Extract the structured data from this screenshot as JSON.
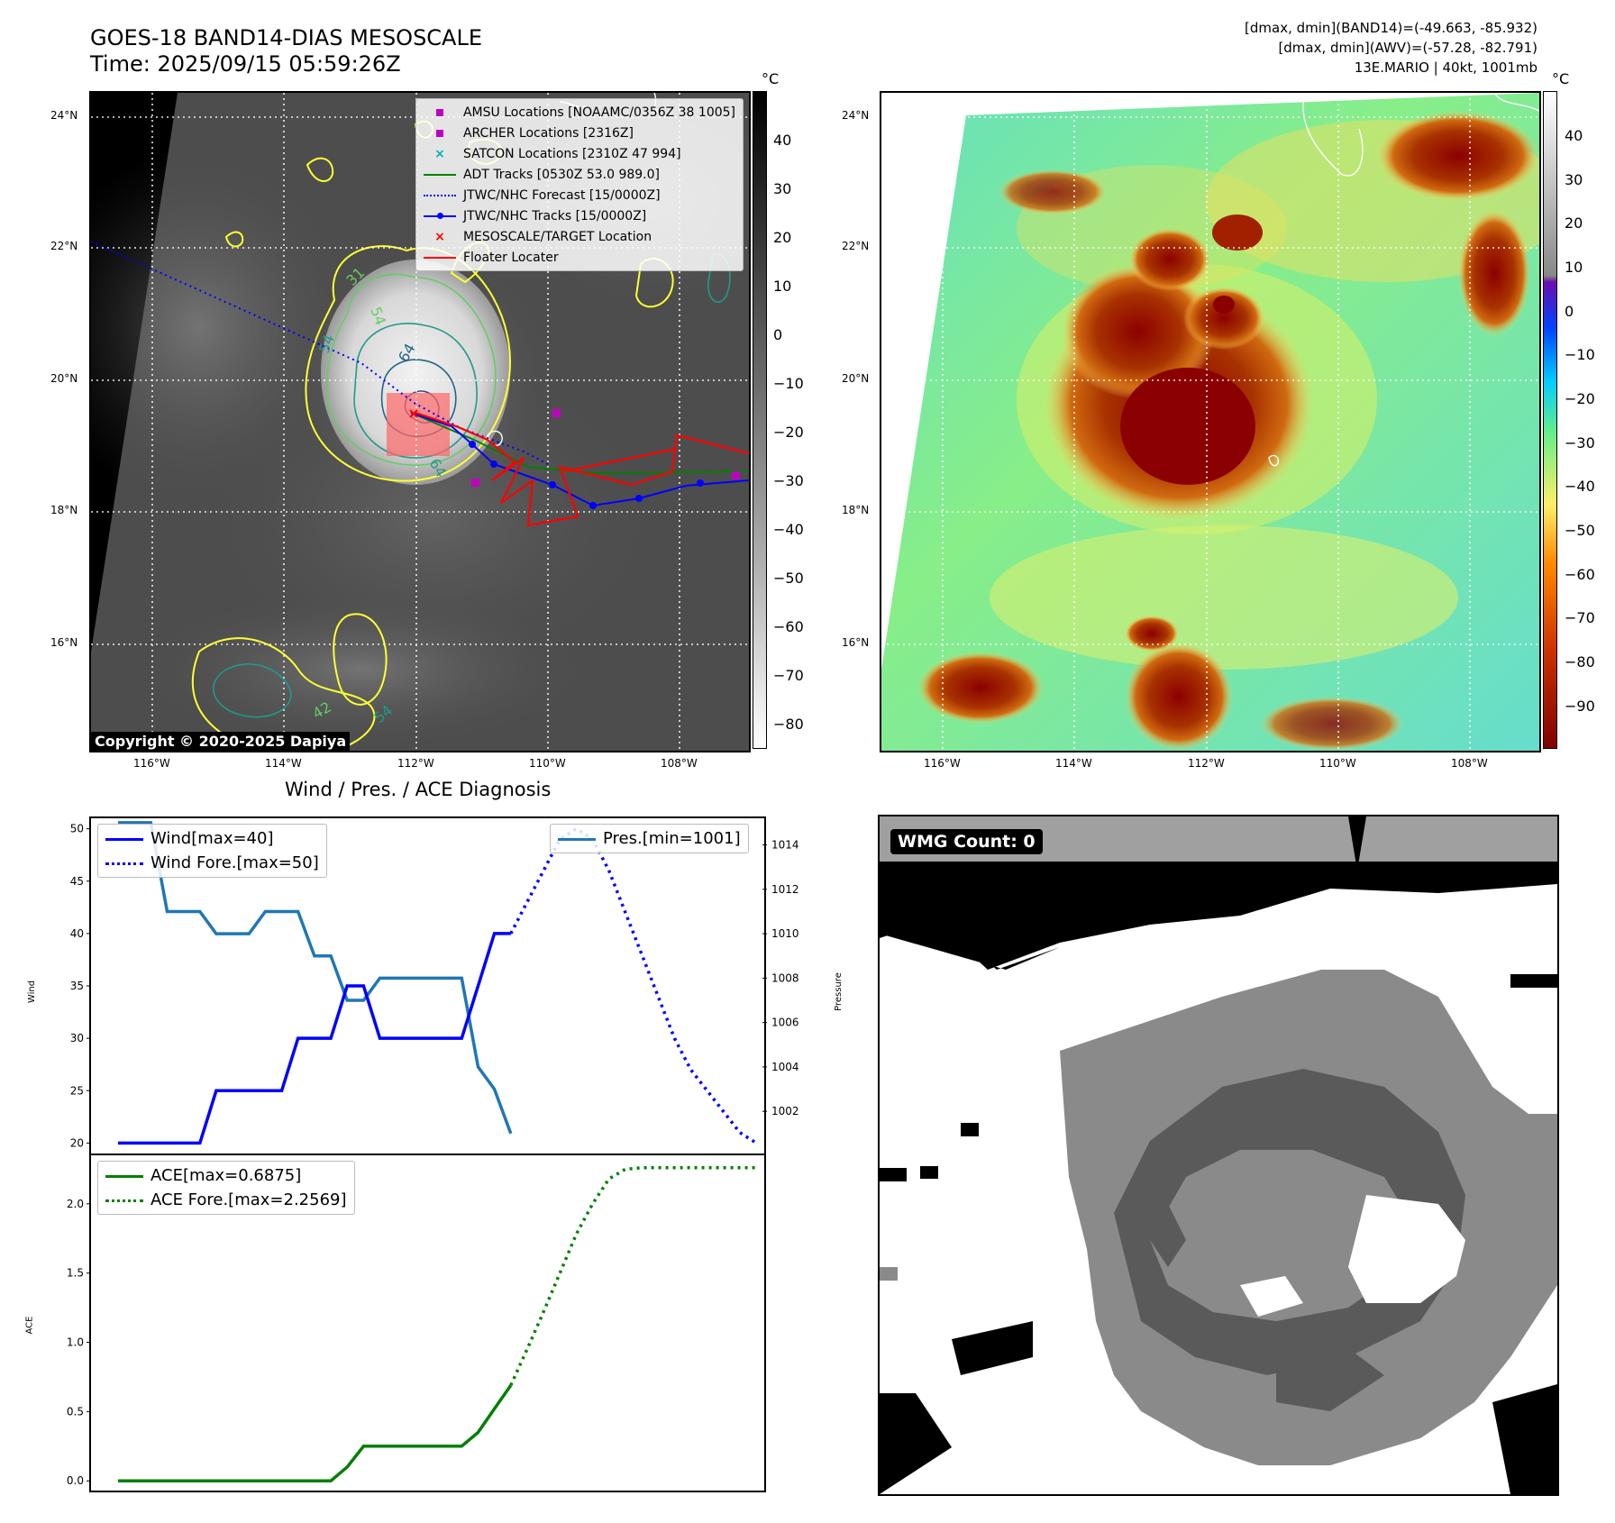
{
  "header": {
    "title_line1": "GOES-18 BAND14-DIAS MESOSCALE",
    "title_line2": "Time: 2025/09/15 05:59:26Z",
    "info_line1": "[dmax, dmin](BAND14)=(-49.663, -85.932)",
    "info_line2": "[dmax, dmin](AWV)=(-57.28, -82.791)",
    "info_line3": "13E.MARIO | 40kt, 1001mb"
  },
  "map_panel": {
    "lat_labels": [
      "24°N",
      "22°N",
      "20°N",
      "18°N",
      "16°N"
    ],
    "lon_labels": [
      "116°W",
      "114°W",
      "112°W",
      "110°W",
      "108°W"
    ],
    "copyright": "Copyright © 2020-2025 Dapiya",
    "contour_labels": [
      "54",
      "64",
      "64",
      "54",
      "31",
      "54",
      "42"
    ],
    "legend": [
      {
        "label": "AMSU Locations [NOAAMC/0356Z 38 1005]",
        "color": "#c000c0",
        "symbol": "square"
      },
      {
        "label": "ARCHER Locations [2316Z]",
        "color": "#c000c0",
        "symbol": "square"
      },
      {
        "label": "SATCON Locations [2310Z 47 994]",
        "color": "#00b0b0",
        "symbol": "x"
      },
      {
        "label": "ADT Tracks [0530Z 53.0 989.0]",
        "color": "#008000",
        "symbol": "line"
      },
      {
        "label": "JTWC/NHC Forecast [15/0000Z]",
        "color": "#0000ff",
        "symbol": "dotted"
      },
      {
        "label": "JTWC/NHC Tracks [15/0000Z]",
        "color": "#0000ff",
        "symbol": "line-dot"
      },
      {
        "label": "MESOSCALE/TARGET Location",
        "color": "#ff0000",
        "symbol": "x"
      },
      {
        "label": "Floater Locater",
        "color": "#ff0000",
        "symbol": "line"
      }
    ],
    "colorbar": {
      "unit": "°C",
      "ticks": [
        "40",
        "30",
        "20",
        "10",
        "0",
        "−10",
        "−20",
        "−30",
        "−40",
        "−50",
        "−60",
        "−70",
        "−80"
      ]
    }
  },
  "color_panel": {
    "lat_labels": [
      "24°N",
      "22°N",
      "20°N",
      "18°N",
      "16°N"
    ],
    "lon_labels": [
      "116°W",
      "114°W",
      "112°W",
      "110°W",
      "108°W"
    ],
    "colorbar": {
      "unit": "°C",
      "ticks": [
        "40",
        "30",
        "20",
        "10",
        "0",
        "−10",
        "−20",
        "−30",
        "−40",
        "−50",
        "−60",
        "−70",
        "−80",
        "−90"
      ]
    }
  },
  "wmg_panel": {
    "label": "WMG Count: 0"
  },
  "chart_data": [
    {
      "type": "line",
      "title": "Wind / Pres. / ACE Diagnosis",
      "ylabel": "Wind",
      "y2label": "Pressure",
      "ylim": [
        19,
        51
      ],
      "y2lim": [
        1000.1,
        1015.2
      ],
      "yticks": [
        "50",
        "45",
        "40",
        "35",
        "30",
        "25",
        "20"
      ],
      "y2ticks": [
        "1014",
        "1012",
        "1010",
        "1008",
        "1006",
        "1004",
        "1002"
      ],
      "series": [
        {
          "name": "Wind[max=40]",
          "color": "#0000ff",
          "style": "solid",
          "axis": "left",
          "values": [
            20,
            20,
            20,
            20,
            20,
            20,
            25,
            25,
            25,
            25,
            25,
            30,
            30,
            30,
            35,
            35,
            30,
            30,
            30,
            30,
            30,
            30,
            35,
            40,
            40
          ]
        },
        {
          "name": "Wind Fore.[max=50]",
          "color": "#0000ff",
          "style": "dotted",
          "axis": "left",
          "x_start": 24,
          "values": [
            40,
            43,
            46,
            49,
            50,
            49,
            46,
            42,
            38,
            34,
            30,
            27,
            25,
            23,
            21,
            20
          ]
        },
        {
          "name": "Pres.[min=1001]",
          "color": "#1f77b4",
          "style": "solid",
          "axis": "right",
          "values": [
            1015,
            1015,
            1015,
            1011,
            1011,
            1011,
            1010,
            1010,
            1010,
            1011,
            1011,
            1011,
            1009,
            1009,
            1007,
            1007,
            1008,
            1008,
            1008,
            1008,
            1008,
            1008,
            1004,
            1003,
            1001
          ]
        }
      ]
    },
    {
      "type": "line",
      "ylabel": "ACE",
      "ylim": [
        -0.07,
        2.35
      ],
      "yticks": [
        "2.0",
        "1.5",
        "1.0",
        "0.5",
        "0.0"
      ],
      "series": [
        {
          "name": "ACE[max=0.6875]",
          "color": "#008000",
          "style": "solid",
          "values": [
            0,
            0,
            0,
            0,
            0,
            0,
            0,
            0,
            0,
            0,
            0,
            0,
            0,
            0,
            0.1,
            0.25,
            0.25,
            0.25,
            0.25,
            0.25,
            0.25,
            0.25,
            0.35,
            0.52,
            0.69
          ]
        },
        {
          "name": "ACE Fore.[max=2.2569]",
          "color": "#008000",
          "style": "dotted",
          "x_start": 24,
          "values": [
            0.69,
            0.95,
            1.22,
            1.5,
            1.78,
            2.0,
            2.18,
            2.25,
            2.26,
            2.26,
            2.26,
            2.26,
            2.26,
            2.26,
            2.26,
            2.26
          ]
        }
      ]
    }
  ]
}
